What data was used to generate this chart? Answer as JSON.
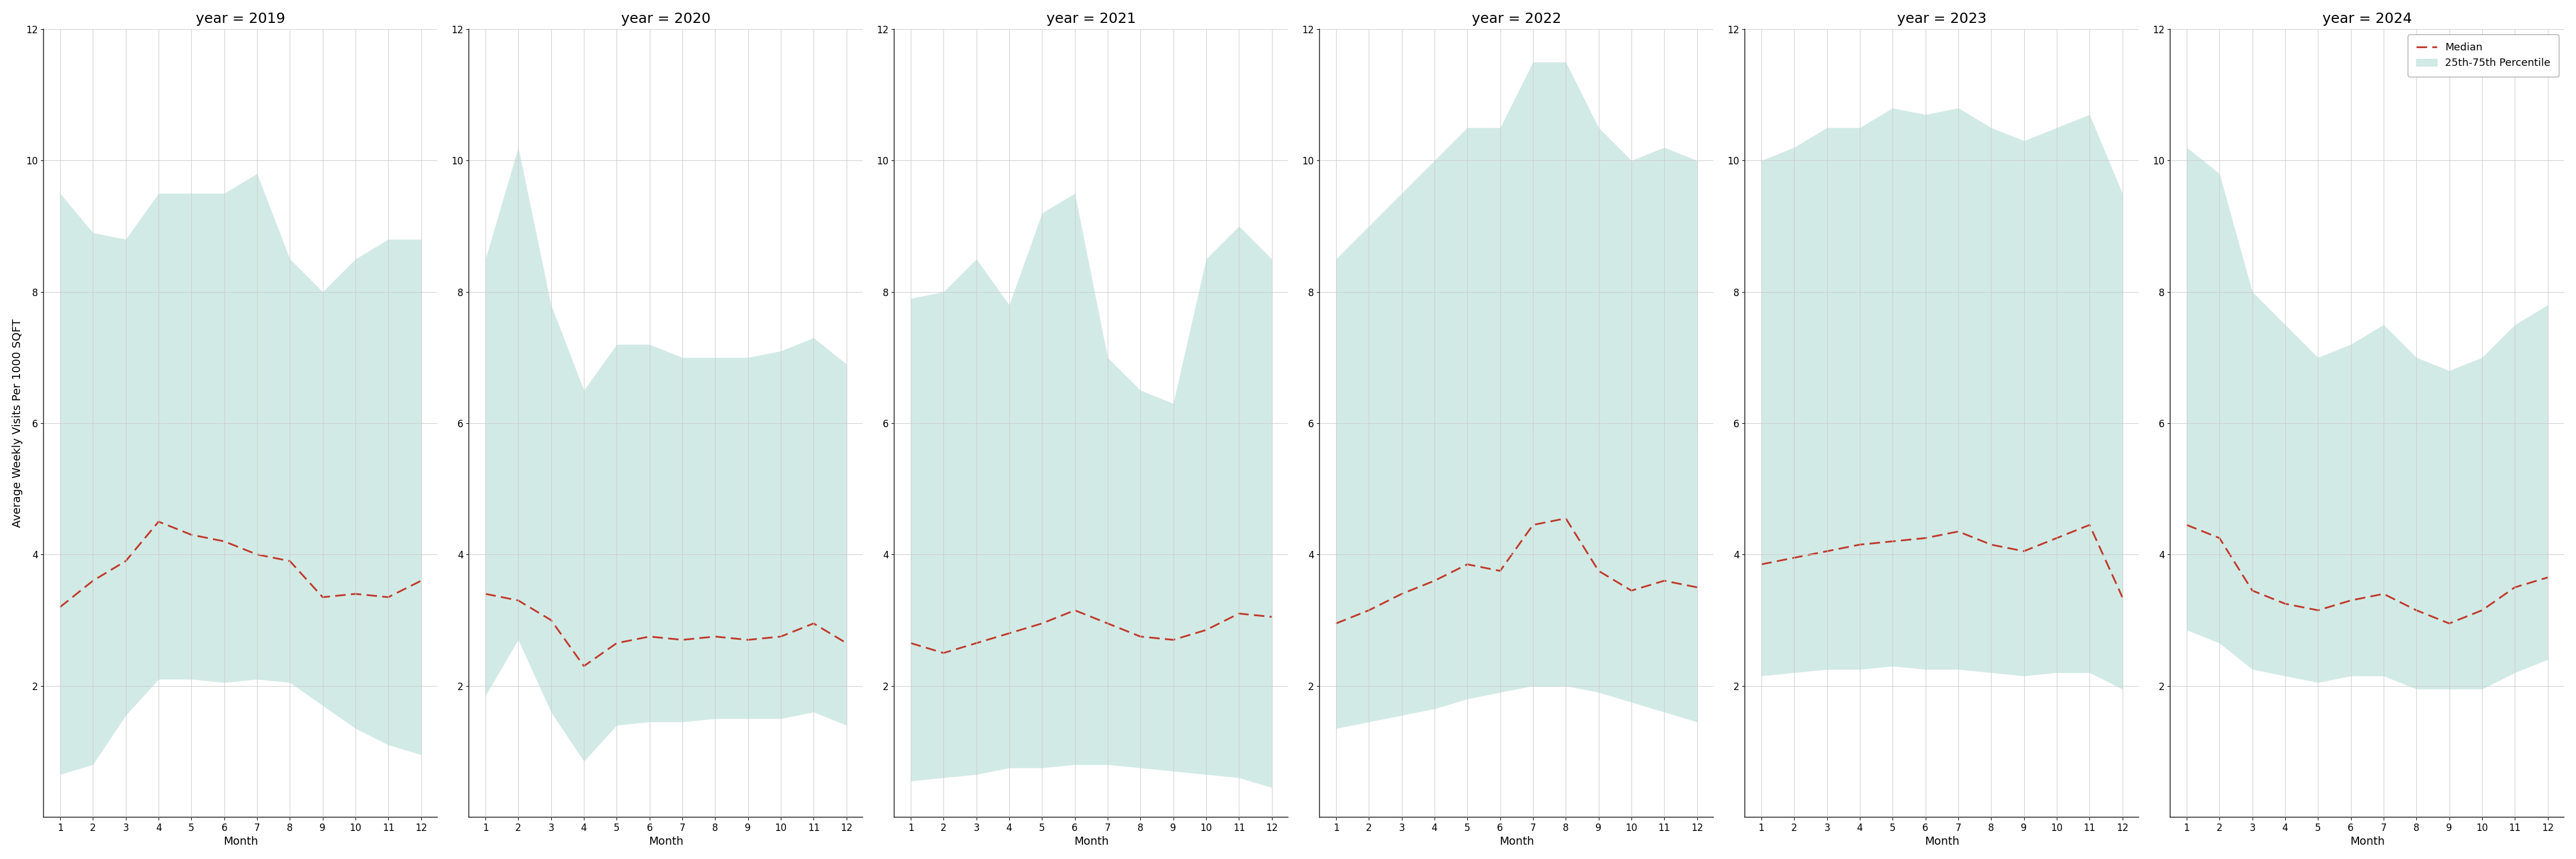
{
  "years": [
    2019,
    2020,
    2021,
    2022,
    2023,
    2024
  ],
  "months": [
    1,
    2,
    3,
    4,
    5,
    6,
    7,
    8,
    9,
    10,
    11,
    12
  ],
  "median": {
    "2019": [
      3.2,
      3.6,
      3.9,
      4.5,
      4.3,
      4.2,
      4.0,
      3.9,
      3.35,
      3.4,
      3.35,
      3.6
    ],
    "2020": [
      3.4,
      3.3,
      3.0,
      2.3,
      2.65,
      2.75,
      2.7,
      2.75,
      2.7,
      2.75,
      2.95,
      2.65
    ],
    "2021": [
      2.65,
      2.5,
      2.65,
      2.8,
      2.95,
      3.15,
      2.95,
      2.75,
      2.7,
      2.85,
      3.1,
      3.05
    ],
    "2022": [
      2.95,
      3.15,
      3.4,
      3.6,
      3.85,
      3.75,
      4.45,
      4.55,
      3.75,
      3.45,
      3.6,
      3.5
    ],
    "2023": [
      3.85,
      3.95,
      4.05,
      4.15,
      4.2,
      4.25,
      4.35,
      4.15,
      4.05,
      4.25,
      4.45,
      3.35
    ],
    "2024": [
      4.45,
      4.25,
      3.45,
      3.25,
      3.15,
      3.3,
      3.4,
      3.15,
      2.95,
      3.15,
      3.5,
      3.65
    ]
  },
  "p25": {
    "2019": [
      0.65,
      0.8,
      1.55,
      2.1,
      2.1,
      2.05,
      2.1,
      2.05,
      1.7,
      1.35,
      1.1,
      0.95
    ],
    "2020": [
      1.85,
      2.7,
      1.6,
      0.85,
      1.4,
      1.45,
      1.45,
      1.5,
      1.5,
      1.5,
      1.6,
      1.4
    ],
    "2021": [
      0.55,
      0.6,
      0.65,
      0.75,
      0.75,
      0.8,
      0.8,
      0.75,
      0.7,
      0.65,
      0.6,
      0.45
    ],
    "2022": [
      1.35,
      1.45,
      1.55,
      1.65,
      1.8,
      1.9,
      2.0,
      2.0,
      1.9,
      1.75,
      1.6,
      1.45
    ],
    "2023": [
      2.15,
      2.2,
      2.25,
      2.25,
      2.3,
      2.25,
      2.25,
      2.2,
      2.15,
      2.2,
      2.2,
      1.95
    ],
    "2024": [
      2.85,
      2.65,
      2.25,
      2.15,
      2.05,
      2.15,
      2.15,
      1.95,
      1.95,
      1.95,
      2.2,
      2.4
    ]
  },
  "p75": {
    "2019": [
      9.5,
      8.9,
      8.8,
      9.5,
      9.5,
      9.5,
      9.8,
      8.5,
      8.0,
      8.5,
      8.8,
      8.8
    ],
    "2020": [
      8.5,
      10.2,
      7.8,
      6.5,
      7.2,
      7.2,
      7.0,
      7.0,
      7.0,
      7.1,
      7.3,
      6.9
    ],
    "2021": [
      7.9,
      8.0,
      8.5,
      7.8,
      9.2,
      9.5,
      7.0,
      6.5,
      6.3,
      8.5,
      9.0,
      8.5
    ],
    "2022": [
      8.5,
      9.0,
      9.5,
      10.0,
      10.5,
      10.5,
      11.5,
      11.5,
      10.5,
      10.0,
      10.2,
      10.0
    ],
    "2023": [
      10.0,
      10.2,
      10.5,
      10.5,
      10.8,
      10.7,
      10.8,
      10.5,
      10.3,
      10.5,
      10.7,
      9.5
    ],
    "2024": [
      10.2,
      9.8,
      8.0,
      7.5,
      7.0,
      7.2,
      7.5,
      7.0,
      6.8,
      7.0,
      7.5,
      7.8
    ]
  },
  "ylim": [
    0,
    12
  ],
  "yticks": [
    2,
    4,
    6,
    8,
    10,
    12
  ],
  "fill_color": "#aed9d0",
  "fill_alpha": 0.55,
  "line_color": "#c0392b",
  "line_width": 2.2,
  "line_style": "--",
  "ylabel": "Average Weekly Visits Per 1000 SQFT",
  "xlabel": "Month",
  "legend_median_label": "Median",
  "legend_fill_label": "25th-75th Percentile",
  "title_prefix": "year = ",
  "background_color": "#ffffff",
  "grid_color": "#cccccc",
  "title_fontsize": 18,
  "label_fontsize": 14,
  "tick_fontsize": 12
}
